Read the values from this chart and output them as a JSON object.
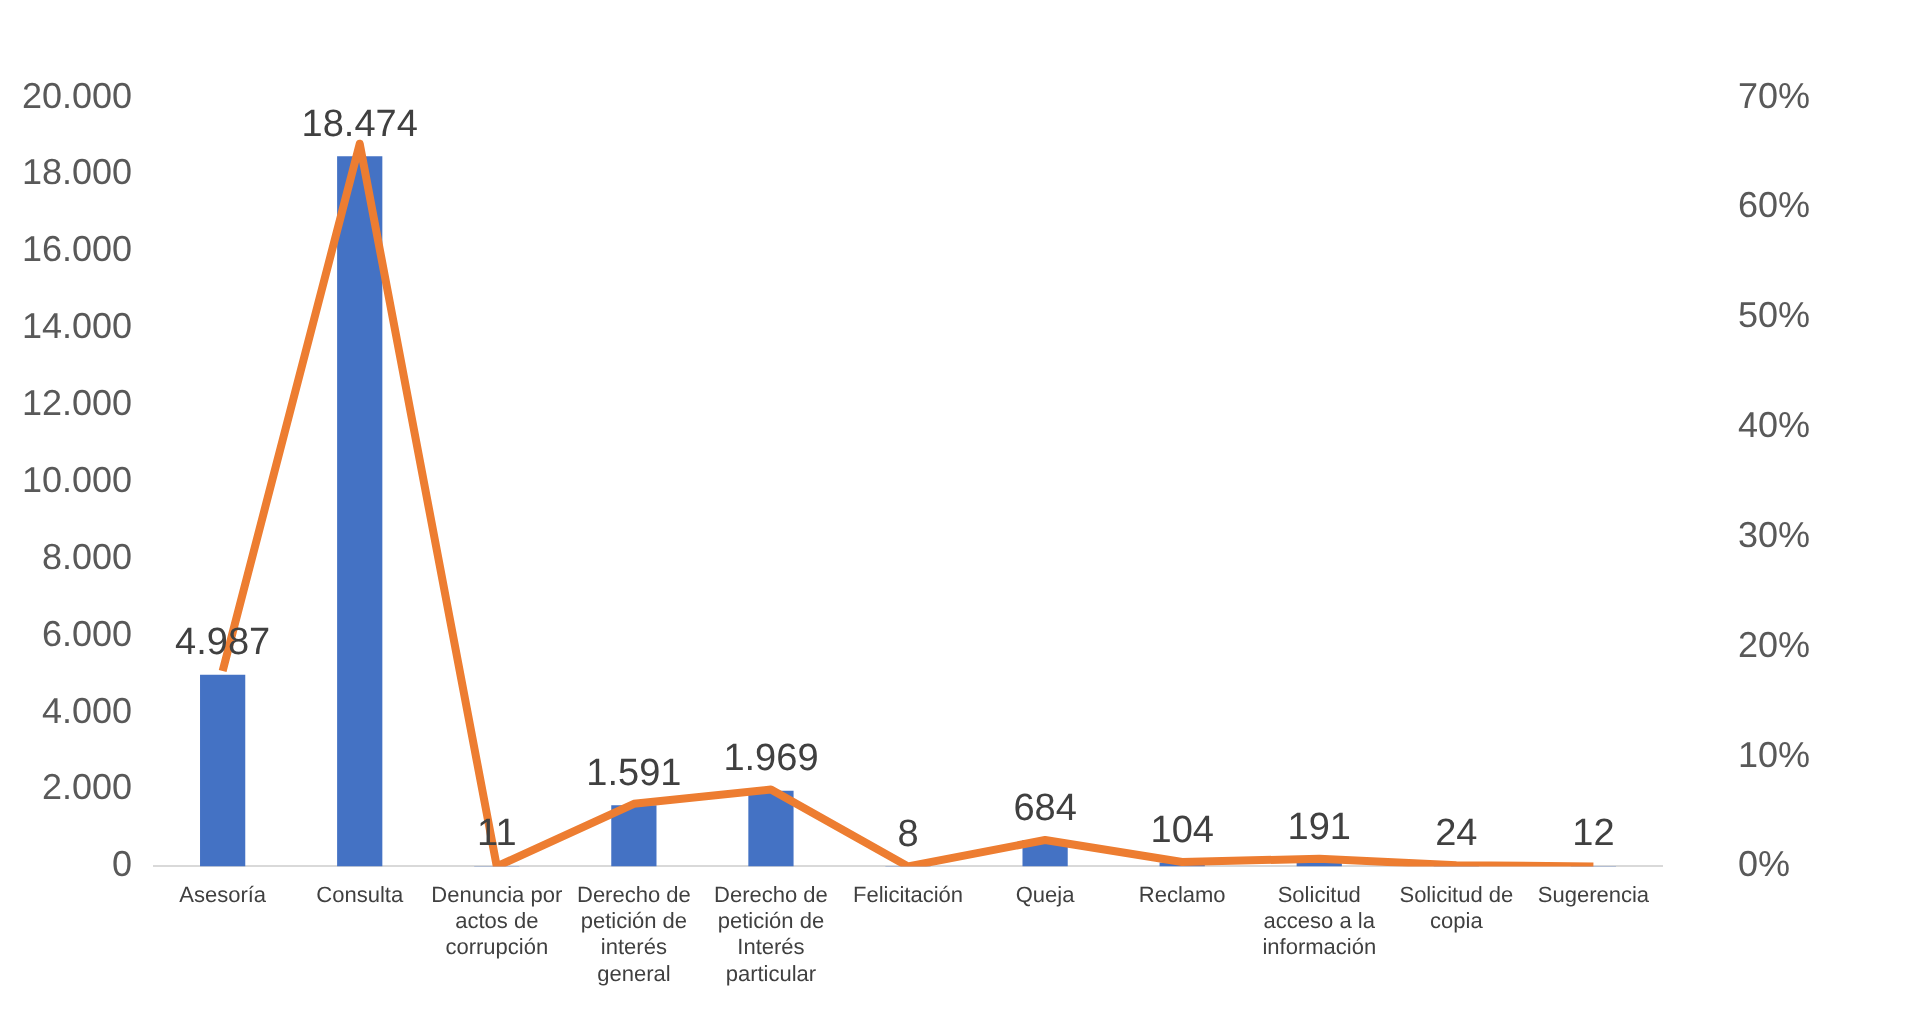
{
  "chart_data": {
    "type": "bar",
    "categories": [
      "Asesoría",
      "Consulta",
      "Denuncia por actos de corrupción",
      "Derecho de petición de interés general",
      "Derecho de petición de Interés particular",
      "Felicitación",
      "Queja",
      "Reclamo",
      "Solicitud acceso a la información",
      "Solicitud de copia",
      "Sugerencia"
    ],
    "series": [
      {
        "color": "#4472c4",
        "values": [
          4987,
          18474,
          11,
          1591,
          1969,
          8,
          684,
          104,
          191,
          24,
          12
        ],
        "value_labels": [
          "4.987",
          "18.474",
          "11",
          "1.591",
          "1.969",
          "8",
          "684",
          "104",
          "191",
          "24",
          "12"
        ]
      },
      {
        "type": "line",
        "axis": "y2",
        "color": "#ed7d31",
        "values": [
          17.8,
          65.8,
          0,
          5.7,
          7.0,
          0,
          2.4,
          0.4,
          0.7,
          0.1,
          0
        ]
      }
    ],
    "ylim": [
      0,
      20000
    ],
    "yticks": [
      {
        "value": 0,
        "label": "0"
      },
      {
        "value": 2000,
        "label": "2.000"
      },
      {
        "value": 4000,
        "label": "4.000"
      },
      {
        "value": 6000,
        "label": "6.000"
      },
      {
        "value": 8000,
        "label": "8.000"
      },
      {
        "value": 10000,
        "label": "10.000"
      },
      {
        "value": 12000,
        "label": "12.000"
      },
      {
        "value": 14000,
        "label": "14.000"
      },
      {
        "value": 16000,
        "label": "16.000"
      },
      {
        "value": 18000,
        "label": "18.000"
      },
      {
        "value": 20000,
        "label": "20.000"
      }
    ],
    "y2lim": [
      0,
      70
    ],
    "y2ticks": [
      {
        "value": 0,
        "label": "0%"
      },
      {
        "value": 10,
        "label": "10%"
      },
      {
        "value": 20,
        "label": "20%"
      },
      {
        "value": 30,
        "label": "30%"
      },
      {
        "value": 40,
        "label": "40%"
      },
      {
        "value": 50,
        "label": "50%"
      },
      {
        "value": 60,
        "label": "60%"
      },
      {
        "value": 70,
        "label": "70%"
      }
    ],
    "grid": false,
    "legend": false,
    "marker": "none"
  }
}
